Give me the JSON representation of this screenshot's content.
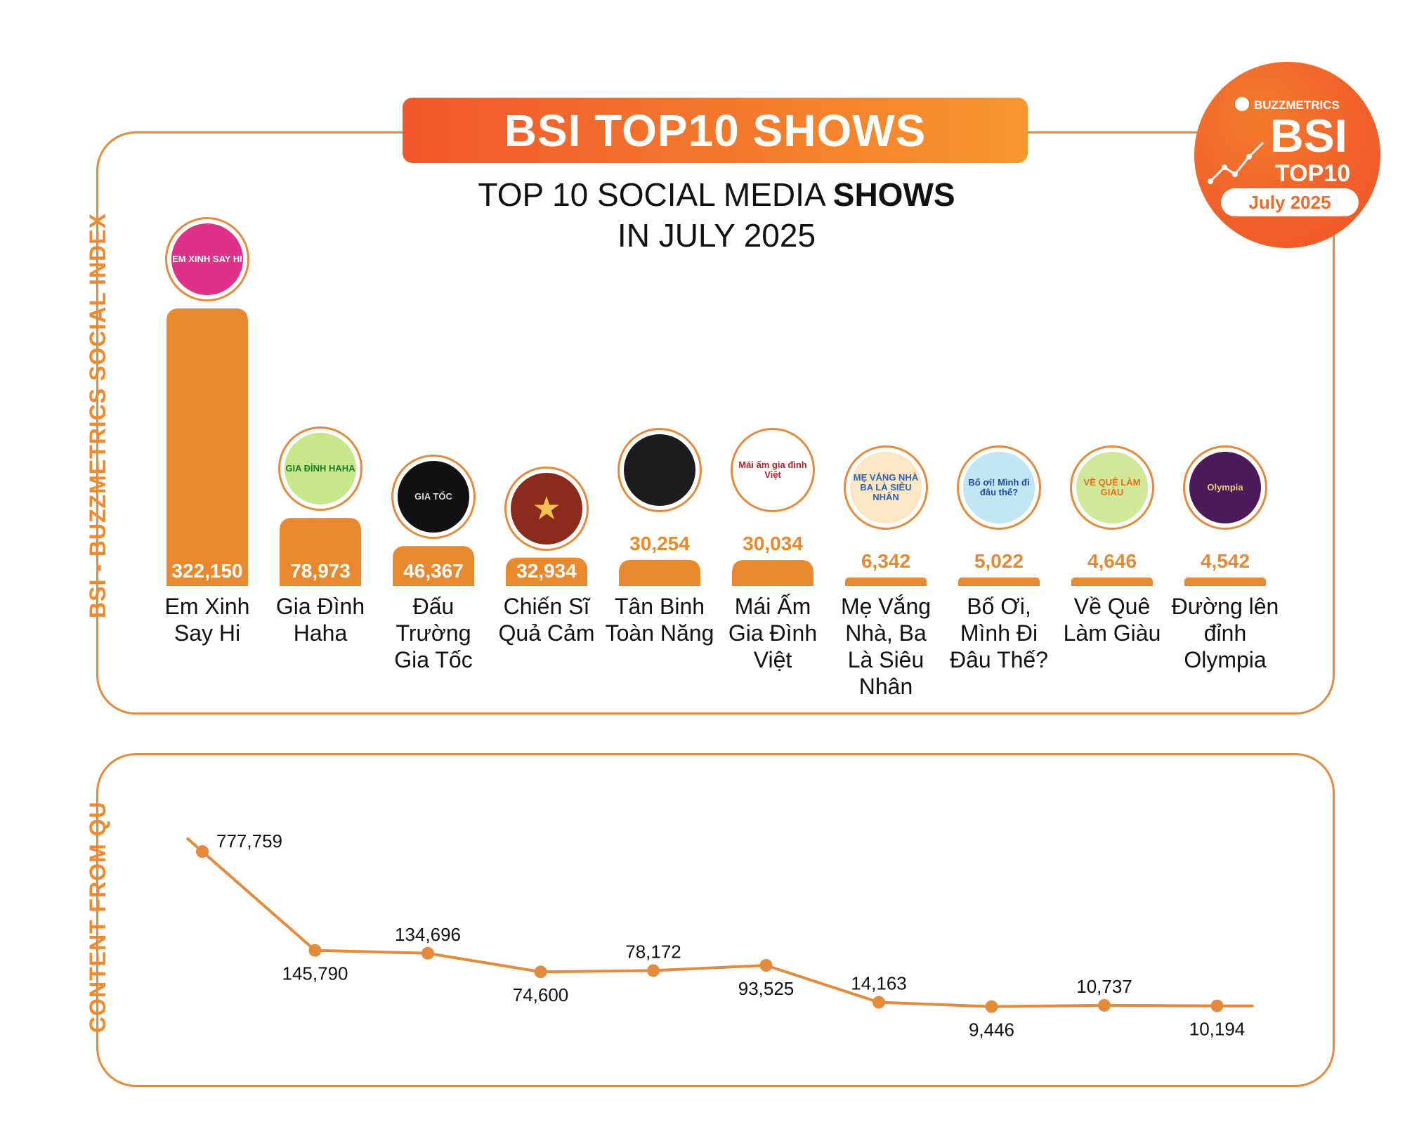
{
  "header": {
    "banner": "BSI TOP10 SHOWS",
    "subtitle_line1_regular": "TOP 10 SOCIAL MEDIA ",
    "subtitle_line1_bold": "SHOWS",
    "subtitle_line2": "IN JULY 2025"
  },
  "badge": {
    "brand": "BUZZMETRICS",
    "bsi": "BSI",
    "top10": "TOP10",
    "month": "July 2025"
  },
  "colors": {
    "accent": "#e58a3a",
    "bar": "#e8892f",
    "banner_start": "#f0572a",
    "banner_end": "#f7972e",
    "axis_label": "#f08a2c"
  },
  "logos": [
    {
      "text": "EM XINH SAY HI",
      "bg": "#e0318a",
      "fg": "#ffffff"
    },
    {
      "text": "GIA ĐÌNH HAHA",
      "bg": "#c6e88a",
      "fg": "#1f7a2a"
    },
    {
      "text": "GIA TỐC",
      "bg": "#111111",
      "fg": "#d8d8d8"
    },
    {
      "text": "★",
      "bg": "#8a2b1b",
      "fg": "#f2c14e"
    },
    {
      "text": "",
      "bg": "#1c1c1c",
      "fg": "#cccccc"
    },
    {
      "text": "Mái ấm gia đình Việt",
      "bg": "#ffffff",
      "fg": "#b0202a"
    },
    {
      "text": "MẸ VẮNG NHÀ BA LÀ SIÊU NHÂN",
      "bg": "#fbe7c4",
      "fg": "#2a63c6"
    },
    {
      "text": "Bố ơi! Mình đi đâu thế?",
      "bg": "#bfe6f2",
      "fg": "#1e4a9a"
    },
    {
      "text": "VỀ QUÊ LÀM GIÀU",
      "bg": "#cfe89a",
      "fg": "#e0731c"
    },
    {
      "text": "Olympia",
      "bg": "#4a1a5a",
      "fg": "#f2d06b"
    }
  ],
  "chart_data": [
    {
      "type": "bar",
      "ylabel": "BSI - BUZZMETRICS SOCIAL INDEX",
      "categories": [
        "Em Xinh Say Hi",
        "Gia Đình Haha",
        "Đấu Trường Gia Tốc",
        "Chiến Sĩ Quả Cảm",
        "Tân Binh Toàn Năng",
        "Mái Ấm Gia Đình Việt",
        "Mẹ Vắng Nhà, Ba Là Siêu Nhân",
        "Bố Ơi, Mình Đi Đâu Thế?",
        "Về Quê Làm Giàu",
        "Đường lên đỉnh Olympia"
      ],
      "values": [
        322150,
        78973,
        46367,
        32934,
        30254,
        30034,
        6342,
        5022,
        4646,
        4542
      ],
      "value_labels": [
        "322,150",
        "78,973",
        "46,367",
        "32,934",
        "30,254",
        "30,034",
        "6,342",
        "5,022",
        "4,646",
        "4,542"
      ]
    },
    {
      "type": "line",
      "ylabel": "CONTENT FROM QU",
      "categories": [
        "Em Xinh Say Hi",
        "Gia Đình Haha",
        "Đấu Trường Gia Tốc",
        "Chiến Sĩ Quả Cảm",
        "Tân Binh Toàn Năng",
        "Mái Ấm Gia Đình Việt",
        "Mẹ Vắng Nhà, Ba Là Siêu Nhân",
        "Bố Ơi, Mình Đi Đâu Thế?",
        "Về Quê Làm Giàu",
        "Đường lên đỉnh Olympia"
      ],
      "values": [
        777759,
        145790,
        134696,
        74600,
        78172,
        93525,
        14163,
        9446,
        10737,
        10194
      ],
      "value_labels": [
        "777,759",
        "145,790",
        "134,696",
        "74,600",
        "78,172",
        "93,525",
        "14,163",
        "9,446",
        "10,737",
        "10,194"
      ],
      "label_positions": [
        "right",
        "below",
        "above",
        "below",
        "above",
        "below",
        "above",
        "below",
        "above",
        "below"
      ]
    }
  ]
}
